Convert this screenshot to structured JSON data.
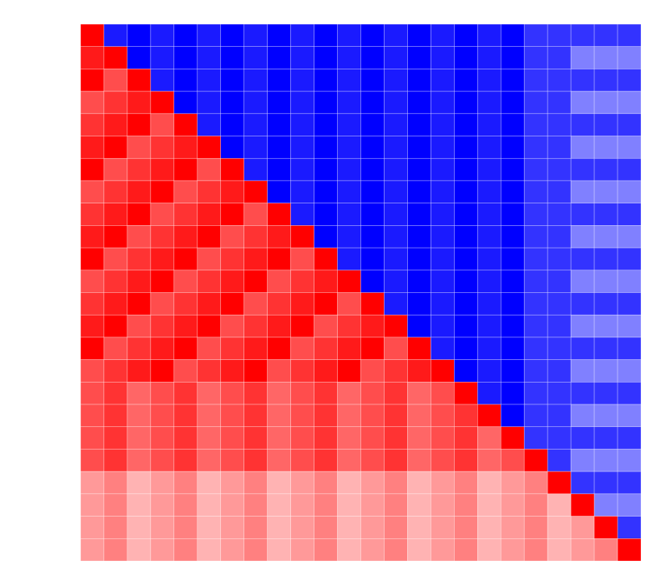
{
  "chart_data": {
    "type": "heatmap",
    "zlim": [
      -1,
      1
    ],
    "colors": {
      "low": "#0000ff",
      "mid": "#ffffff",
      "high": "#ff0000"
    },
    "z": [
      [
        1,
        -0.9,
        -1,
        -0.9,
        -1,
        -0.9,
        -1,
        -0.9,
        -1,
        -0.9,
        -1,
        -0.9,
        -1,
        -0.9,
        -1,
        -0.9,
        -1,
        -0.9,
        -1,
        -0.8,
        -0.8,
        -0.8,
        -0.8,
        -0.8
      ],
      [
        0.9,
        1,
        -1,
        -0.9,
        -1,
        -0.9,
        -1,
        -0.9,
        -1,
        -0.9,
        -1,
        -0.9,
        -1,
        -0.9,
        -1,
        -0.9,
        -1,
        -0.9,
        -1,
        -0.8,
        -0.8,
        -0.5,
        -0.5,
        -0.5
      ],
      [
        1,
        0.7,
        1,
        -0.9,
        -1,
        -0.9,
        -1,
        -0.9,
        -1,
        -0.9,
        -1,
        -0.9,
        -1,
        -0.9,
        -1,
        -0.9,
        -1,
        -0.9,
        -1,
        -0.8,
        -0.8,
        -0.8,
        -0.8,
        -0.8
      ],
      [
        0.7,
        0.8,
        0.9,
        1,
        -1,
        -0.9,
        -1,
        -0.9,
        -1,
        -0.9,
        -1,
        -0.9,
        -1,
        -0.9,
        -1,
        -0.9,
        -1,
        -0.9,
        -1,
        -0.8,
        -0.8,
        -0.5,
        -0.5,
        -0.5
      ],
      [
        0.8,
        0.9,
        1,
        0.7,
        1,
        -0.9,
        -1,
        -0.9,
        -1,
        -0.9,
        -1,
        -0.9,
        -1,
        -0.9,
        -1,
        -0.9,
        -1,
        -0.9,
        -1,
        -0.8,
        -0.8,
        -0.8,
        -0.8,
        -0.8
      ],
      [
        0.9,
        1,
        0.7,
        0.8,
        0.9,
        1,
        -1,
        -0.9,
        -1,
        -0.9,
        -1,
        -0.9,
        -1,
        -0.9,
        -1,
        -0.9,
        -1,
        -0.9,
        -1,
        -0.8,
        -0.8,
        -0.5,
        -0.5,
        -0.5
      ],
      [
        1,
        0.7,
        0.8,
        0.9,
        1,
        0.7,
        1,
        -0.9,
        -1,
        -0.9,
        -1,
        -0.9,
        -1,
        -0.9,
        -1,
        -0.9,
        -1,
        -0.9,
        -1,
        -0.8,
        -0.8,
        -0.8,
        -0.8,
        -0.8
      ],
      [
        0.7,
        0.8,
        0.9,
        1,
        0.7,
        0.8,
        0.9,
        1,
        -1,
        -0.9,
        -1,
        -0.9,
        -1,
        -0.9,
        -1,
        -0.9,
        -1,
        -0.9,
        -1,
        -0.8,
        -0.8,
        -0.5,
        -0.5,
        -0.5
      ],
      [
        0.8,
        0.9,
        1,
        0.7,
        0.8,
        0.9,
        1,
        0.7,
        1,
        -0.9,
        -1,
        -0.9,
        -1,
        -0.9,
        -1,
        -0.9,
        -1,
        -0.9,
        -1,
        -0.8,
        -0.8,
        -0.8,
        -0.8,
        -0.8
      ],
      [
        0.9,
        1,
        0.7,
        0.8,
        0.9,
        1,
        0.7,
        0.8,
        0.9,
        1,
        -1,
        -0.9,
        -1,
        -0.9,
        -1,
        -0.9,
        -1,
        -0.9,
        -1,
        -0.8,
        -0.8,
        -0.5,
        -0.5,
        -0.5
      ],
      [
        1,
        0.7,
        0.8,
        0.9,
        1,
        0.7,
        0.8,
        0.9,
        1,
        0.7,
        1,
        -0.9,
        -1,
        -0.9,
        -1,
        -0.9,
        -1,
        -0.9,
        -1,
        -0.8,
        -0.8,
        -0.8,
        -0.8,
        -0.8
      ],
      [
        0.7,
        0.8,
        0.9,
        1,
        0.7,
        0.8,
        0.9,
        1,
        0.7,
        0.8,
        0.9,
        1,
        -1,
        -0.9,
        -1,
        -0.9,
        -1,
        -0.9,
        -1,
        -0.8,
        -0.8,
        -0.5,
        -0.5,
        -0.5
      ],
      [
        0.8,
        0.9,
        1,
        0.7,
        0.8,
        0.9,
        1,
        0.7,
        0.8,
        0.9,
        1,
        0.7,
        1,
        -0.9,
        -1,
        -0.9,
        -1,
        -0.9,
        -1,
        -0.8,
        -0.8,
        -0.8,
        -0.8,
        -0.8
      ],
      [
        0.9,
        1,
        0.7,
        0.8,
        0.9,
        1,
        0.7,
        0.8,
        0.9,
        1,
        0.7,
        0.8,
        0.9,
        1,
        -1,
        -0.9,
        -1,
        -0.9,
        -1,
        -0.8,
        -0.8,
        -0.5,
        -0.5,
        -0.5
      ],
      [
        1,
        0.7,
        0.8,
        0.9,
        1,
        0.7,
        0.8,
        0.9,
        1,
        0.7,
        0.8,
        0.9,
        1,
        0.7,
        1,
        -0.9,
        -1,
        -0.9,
        -1,
        -0.8,
        -0.8,
        -0.8,
        -0.8,
        -0.8
      ],
      [
        0.7,
        0.8,
        0.9,
        1,
        0.7,
        0.8,
        0.9,
        1,
        0.7,
        0.8,
        0.9,
        1,
        0.7,
        0.8,
        0.9,
        1,
        -1,
        -0.9,
        -1,
        -0.8,
        -0.8,
        -0.5,
        -0.5,
        -0.5
      ],
      [
        0.7,
        0.8,
        0.6,
        0.7,
        0.8,
        0.6,
        0.7,
        0.8,
        0.6,
        0.7,
        0.8,
        0.6,
        0.7,
        0.8,
        0.6,
        0.7,
        1,
        -0.9,
        -1,
        -0.8,
        -0.8,
        -0.8,
        -0.8,
        -0.8
      ],
      [
        0.7,
        0.8,
        0.6,
        0.7,
        0.8,
        0.6,
        0.7,
        0.8,
        0.6,
        0.7,
        0.8,
        0.6,
        0.7,
        0.8,
        0.6,
        0.7,
        0.8,
        1,
        -1,
        -0.8,
        -0.8,
        -0.5,
        -0.5,
        -0.5
      ],
      [
        0.7,
        0.8,
        0.6,
        0.7,
        0.8,
        0.6,
        0.7,
        0.8,
        0.6,
        0.7,
        0.8,
        0.6,
        0.7,
        0.8,
        0.6,
        0.7,
        0.8,
        0.6,
        1,
        -0.8,
        -0.8,
        -0.8,
        -0.8,
        -0.8
      ],
      [
        0.7,
        0.8,
        0.6,
        0.7,
        0.8,
        0.6,
        0.7,
        0.8,
        0.6,
        0.7,
        0.8,
        0.6,
        0.7,
        0.8,
        0.6,
        0.7,
        0.8,
        0.6,
        0.7,
        1,
        -0.8,
        -0.5,
        -0.5,
        -0.5
      ],
      [
        0.4,
        0.5,
        0.3,
        0.4,
        0.5,
        0.3,
        0.4,
        0.5,
        0.3,
        0.4,
        0.5,
        0.3,
        0.4,
        0.5,
        0.3,
        0.4,
        0.5,
        0.3,
        0.4,
        0.5,
        1,
        -0.8,
        -0.8,
        -0.8
      ],
      [
        0.4,
        0.5,
        0.3,
        0.4,
        0.5,
        0.3,
        0.4,
        0.5,
        0.3,
        0.4,
        0.5,
        0.3,
        0.4,
        0.5,
        0.3,
        0.4,
        0.5,
        0.3,
        0.4,
        0.5,
        0.3,
        1,
        -0.5,
        -0.5
      ],
      [
        0.4,
        0.5,
        0.3,
        0.4,
        0.5,
        0.3,
        0.4,
        0.5,
        0.3,
        0.4,
        0.5,
        0.3,
        0.4,
        0.5,
        0.3,
        0.4,
        0.5,
        0.3,
        0.4,
        0.5,
        0.3,
        0.4,
        1,
        -0.8
      ],
      [
        0.4,
        0.5,
        0.3,
        0.4,
        0.5,
        0.3,
        0.4,
        0.5,
        0.3,
        0.4,
        0.5,
        0.3,
        0.4,
        0.5,
        0.3,
        0.4,
        0.5,
        0.3,
        0.4,
        0.5,
        0.3,
        0.4,
        0.5,
        1
      ]
    ]
  }
}
